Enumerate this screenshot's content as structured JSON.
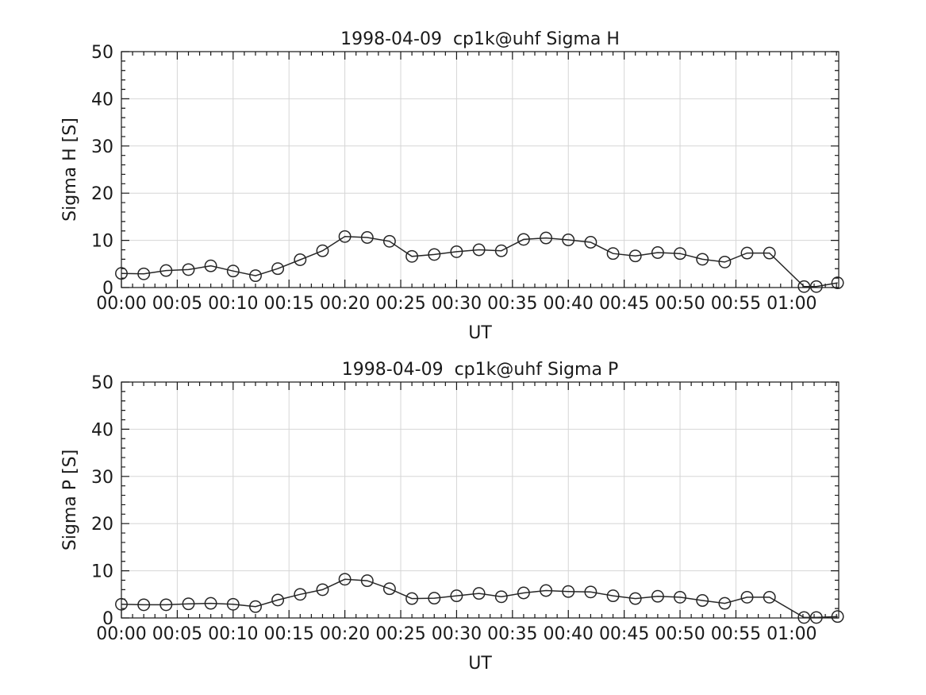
{
  "style": {
    "background": "#ffffff",
    "axis_color": "#161616",
    "grid_color": "#d6d6d6",
    "line_color": "#262626",
    "marker_color": "#262626",
    "text_color": "#1a1a1a"
  },
  "chart_data": [
    {
      "type": "line",
      "title": "1998-04-09  cp1k@uhf Sigma H",
      "xlabel": "UT",
      "ylabel": "Sigma H [S]",
      "marker": "open-circle",
      "legend": "none",
      "grid": "major-both",
      "xlim_minutes": [
        0,
        64.2
      ],
      "ylim": [
        0,
        50
      ],
      "y_major_ticks": [
        0,
        10,
        20,
        30,
        40,
        50
      ],
      "y_minor_step": 2,
      "x_major_ticks_minutes": [
        0,
        5,
        10,
        15,
        20,
        25,
        30,
        35,
        40,
        45,
        50,
        55,
        60
      ],
      "x_tick_labels": [
        "00:00",
        "00:05",
        "00:10",
        "00:15",
        "00:20",
        "00:25",
        "00:30",
        "00:35",
        "00:40",
        "00:45",
        "00:50",
        "00:55",
        "01:00"
      ],
      "x_minor_step_minutes": 1,
      "x_minutes": [
        0,
        2,
        4,
        6,
        8,
        10,
        12,
        14,
        16,
        18,
        20,
        22,
        24,
        26,
        28,
        30,
        32,
        34,
        36,
        38,
        40,
        42,
        44,
        46,
        48,
        50,
        52,
        54,
        56,
        58,
        61.1,
        62.2,
        64.1
      ],
      "values": [
        3.0,
        2.9,
        3.6,
        3.8,
        4.6,
        3.5,
        2.5,
        4.0,
        5.9,
        7.8,
        10.8,
        10.6,
        9.8,
        6.6,
        7.0,
        7.6,
        8.0,
        7.8,
        10.2,
        10.5,
        10.1,
        9.6,
        7.2,
        6.7,
        7.4,
        7.2,
        6.0,
        5.4,
        7.3,
        7.3,
        0.2,
        0.2,
        1.0
      ]
    },
    {
      "type": "line",
      "title": "1998-04-09  cp1k@uhf Sigma P",
      "xlabel": "UT",
      "ylabel": "Sigma P [S]",
      "marker": "open-circle",
      "legend": "none",
      "grid": "major-both",
      "xlim_minutes": [
        0,
        64.2
      ],
      "ylim": [
        0,
        50
      ],
      "y_major_ticks": [
        0,
        10,
        20,
        30,
        40,
        50
      ],
      "y_minor_step": 2,
      "x_major_ticks_minutes": [
        0,
        5,
        10,
        15,
        20,
        25,
        30,
        35,
        40,
        45,
        50,
        55,
        60
      ],
      "x_tick_labels": [
        "00:00",
        "00:05",
        "00:10",
        "00:15",
        "00:20",
        "00:25",
        "00:30",
        "00:35",
        "00:40",
        "00:45",
        "00:50",
        "00:55",
        "01:00"
      ],
      "x_minor_step_minutes": 1,
      "x_minutes": [
        0,
        2,
        4,
        6,
        8,
        10,
        12,
        14,
        16,
        18,
        20,
        22,
        24,
        26,
        28,
        30,
        32,
        34,
        36,
        38,
        40,
        42,
        44,
        46,
        48,
        50,
        52,
        54,
        56,
        58,
        61.1,
        62.2,
        64.1
      ],
      "values": [
        2.9,
        2.8,
        2.8,
        3.0,
        3.1,
        2.9,
        2.4,
        3.8,
        5.0,
        6.0,
        8.2,
        7.9,
        6.2,
        4.1,
        4.2,
        4.7,
        5.2,
        4.5,
        5.3,
        5.8,
        5.6,
        5.5,
        4.7,
        4.1,
        4.6,
        4.4,
        3.7,
        3.1,
        4.4,
        4.4,
        0.1,
        0.1,
        0.3
      ]
    }
  ]
}
